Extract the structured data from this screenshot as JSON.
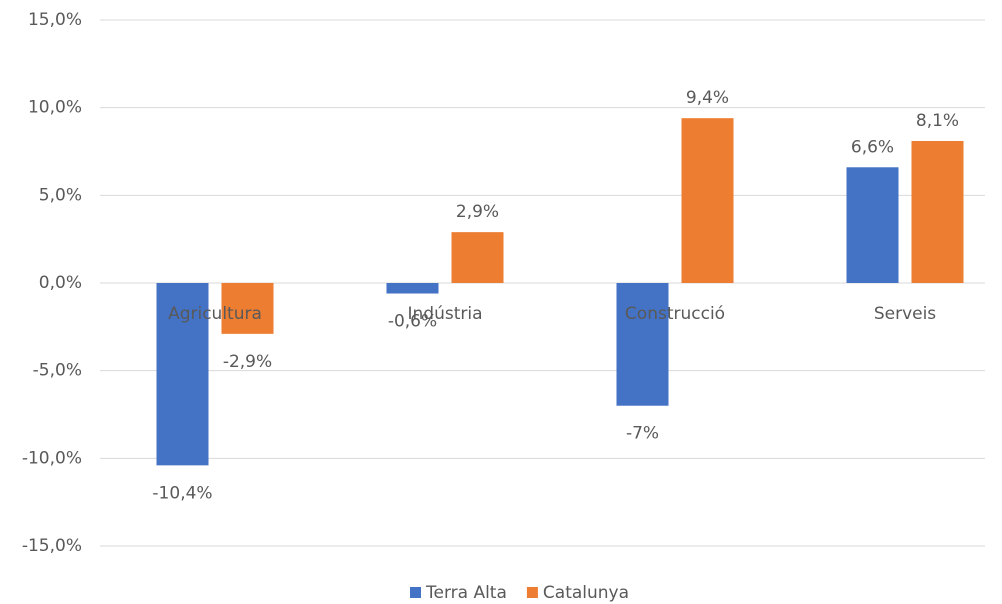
{
  "chart_data": {
    "type": "bar",
    "categories": [
      "Agricultura",
      "Indústria",
      "Construcció",
      "Serveis"
    ],
    "series": [
      {
        "name": "Terra Alta",
        "color": "#4472c4",
        "values": [
          -10.4,
          -0.6,
          -7,
          6.6
        ],
        "value_labels": [
          "-10,4%",
          "-0,6%",
          "-7%",
          "6,6%"
        ]
      },
      {
        "name": "Catalunya",
        "color": "#ed7d31",
        "values": [
          -2.9,
          2.9,
          9.4,
          8.1
        ],
        "value_labels": [
          "-2,9%",
          "2,9%",
          "9,4%",
          "8,1%"
        ]
      }
    ],
    "ylim": [
      -15,
      15
    ],
    "yticks": [
      {
        "value": -15,
        "label": "-15,0%"
      },
      {
        "value": -10,
        "label": "-10,0%"
      },
      {
        "value": -5,
        "label": "-5,0%"
      },
      {
        "value": 0,
        "label": "0,0%"
      },
      {
        "value": 5,
        "label": "5,0%"
      },
      {
        "value": 10,
        "label": "10,0%"
      },
      {
        "value": 15,
        "label": "15,0%"
      }
    ],
    "grid": true,
    "legend": "bottom"
  }
}
